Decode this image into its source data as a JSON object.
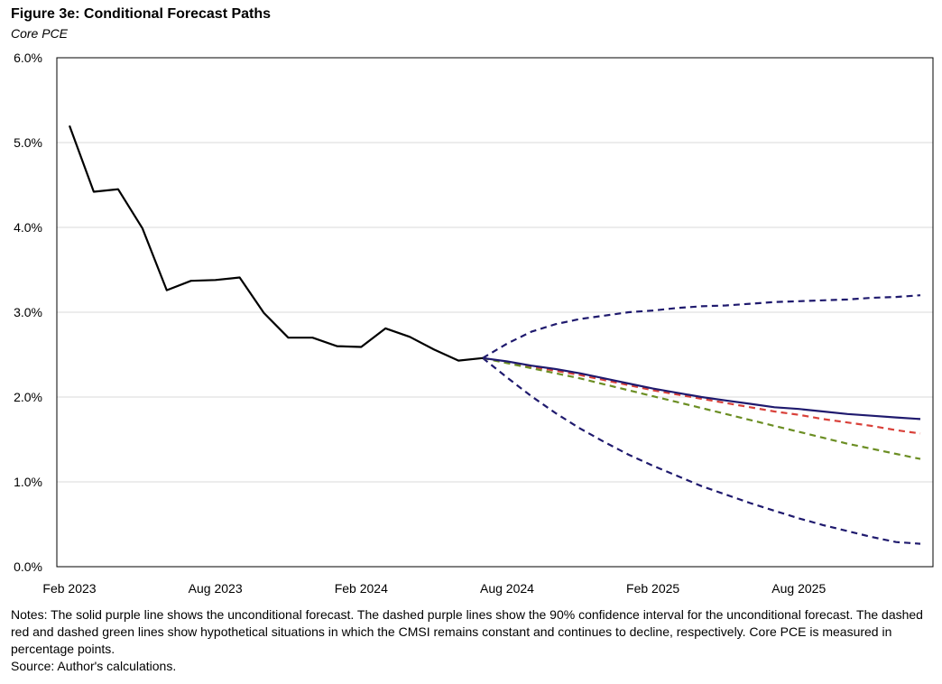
{
  "figure": {
    "title": "Figure 3e: Conditional Forecast Paths",
    "subtitle": "Core PCE",
    "notes": "Notes: The solid purple line shows the unconditional forecast. The dashed purple lines show the 90% confidence interval for the unconditional forecast. The dashed red and dashed green lines show hypothetical situations in which the CMSI remains constant and continues to decline, respectively. Core PCE is measured in percentage points.",
    "source": "Source: Author's calculations."
  },
  "chart_data": {
    "type": "line",
    "title": "Figure 3e: Conditional Forecast Paths",
    "subtitle": "Core PCE",
    "xlabel": "",
    "ylabel": "",
    "ylim": [
      0,
      6
    ],
    "y_ticks": [
      0,
      1,
      2,
      3,
      4,
      5,
      6
    ],
    "y_tick_labels": [
      "0.0%",
      "1.0%",
      "2.0%",
      "3.0%",
      "4.0%",
      "5.0%",
      "6.0%"
    ],
    "x_range": [
      0,
      35
    ],
    "x_ticks": [
      0,
      6,
      12,
      18,
      24,
      30
    ],
    "x_tick_labels": [
      "Feb 2023",
      "Aug 2023",
      "Feb 2024",
      "Aug 2024",
      "Feb 2025",
      "Aug 2025"
    ],
    "grid": true,
    "series": [
      {
        "name": "Historical Core PCE",
        "color": "#000000",
        "style": "solid",
        "x": [
          0,
          1,
          2,
          3,
          4,
          5,
          6,
          7,
          8,
          9,
          10,
          11,
          12,
          13,
          14,
          15,
          16,
          17
        ],
        "y": [
          5.2,
          4.42,
          4.45,
          3.99,
          3.26,
          3.37,
          3.38,
          3.41,
          2.99,
          2.7,
          2.7,
          2.6,
          2.59,
          2.81,
          2.71,
          2.56,
          2.43,
          2.46
        ]
      },
      {
        "name": "Unconditional forecast",
        "color": "#1f1a6e",
        "style": "solid",
        "x": [
          17,
          18,
          19,
          20,
          21,
          22,
          23,
          24,
          25,
          26,
          27,
          28,
          29,
          30,
          31,
          32,
          33,
          34,
          35
        ],
        "y": [
          2.46,
          2.42,
          2.37,
          2.33,
          2.28,
          2.22,
          2.16,
          2.1,
          2.05,
          2.0,
          1.96,
          1.92,
          1.88,
          1.86,
          1.83,
          1.8,
          1.78,
          1.76,
          1.74
        ]
      },
      {
        "name": "90% confidence interval (upper)",
        "color": "#1f1a6e",
        "style": "dashed",
        "x": [
          17,
          18,
          19,
          20,
          21,
          22,
          23,
          24,
          25,
          26,
          27,
          28,
          29,
          30,
          31,
          32,
          33,
          34,
          35
        ],
        "y": [
          2.46,
          2.63,
          2.77,
          2.86,
          2.92,
          2.96,
          3.0,
          3.02,
          3.05,
          3.07,
          3.08,
          3.1,
          3.12,
          3.13,
          3.14,
          3.15,
          3.17,
          3.18,
          3.2
        ]
      },
      {
        "name": "90% confidence interval (lower)",
        "color": "#1f1a6e",
        "style": "dashed",
        "x": [
          17,
          18,
          19,
          20,
          21,
          22,
          23,
          24,
          25,
          26,
          27,
          28,
          29,
          30,
          31,
          32,
          33,
          34,
          35
        ],
        "y": [
          2.46,
          2.23,
          2.01,
          1.81,
          1.63,
          1.47,
          1.32,
          1.19,
          1.07,
          0.95,
          0.85,
          0.75,
          0.66,
          0.57,
          0.49,
          0.42,
          0.35,
          0.29,
          0.27
        ]
      },
      {
        "name": "CMSI remains constant",
        "color": "#d9413a",
        "style": "dashed",
        "x": [
          17,
          18,
          19,
          20,
          21,
          22,
          23,
          24,
          25,
          26,
          27,
          28,
          29,
          30,
          31,
          32,
          33,
          34,
          35
        ],
        "y": [
          2.46,
          2.41,
          2.36,
          2.31,
          2.26,
          2.2,
          2.14,
          2.08,
          2.03,
          1.98,
          1.93,
          1.88,
          1.83,
          1.79,
          1.74,
          1.7,
          1.66,
          1.61,
          1.57
        ]
      },
      {
        "name": "CMSI continues to decline",
        "color": "#6b8e23",
        "style": "dashed",
        "x": [
          17,
          18,
          19,
          20,
          21,
          22,
          23,
          24,
          25,
          26,
          27,
          28,
          29,
          30,
          31,
          32,
          33,
          34,
          35
        ],
        "y": [
          2.46,
          2.4,
          2.34,
          2.28,
          2.22,
          2.15,
          2.08,
          2.01,
          1.94,
          1.87,
          1.8,
          1.73,
          1.66,
          1.59,
          1.52,
          1.45,
          1.39,
          1.33,
          1.27
        ]
      }
    ]
  }
}
